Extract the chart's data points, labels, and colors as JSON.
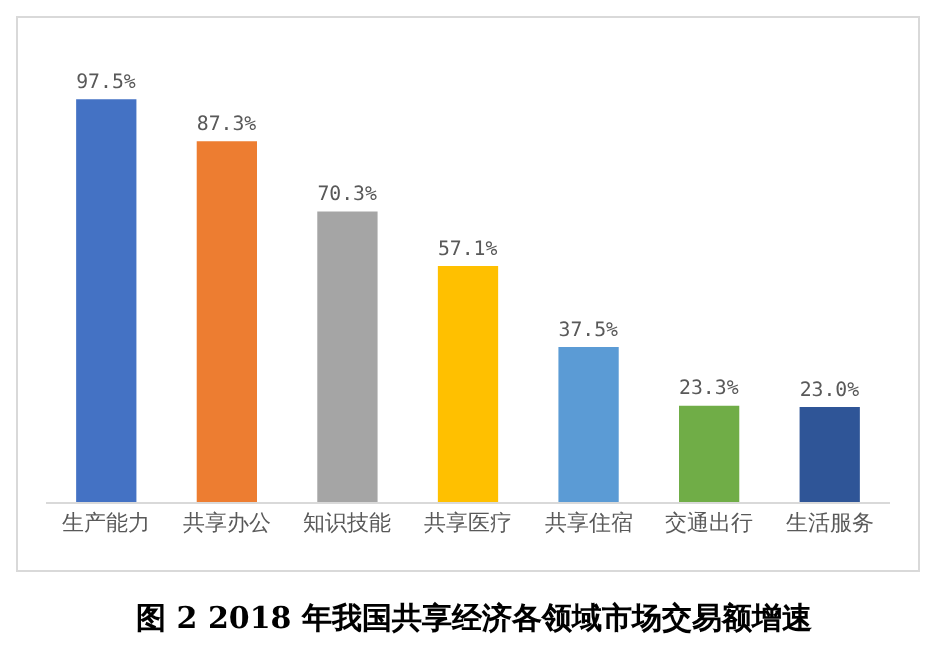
{
  "chart_data": {
    "type": "bar",
    "title": "图 2  2018 年我国共享经济各领域市场交易额增速",
    "categories": [
      "生产能力",
      "共享办公",
      "知识技能",
      "共享医疗",
      "共享住宿",
      "交通出行",
      "生活服务"
    ],
    "values": [
      97.5,
      87.3,
      70.3,
      57.1,
      37.5,
      23.3,
      23.0
    ],
    "value_labels": [
      "97.5%",
      "87.3%",
      "70.3%",
      "57.1%",
      "37.5%",
      "23.3%",
      "23.0%"
    ],
    "colors": [
      "#4472c4",
      "#ed7d31",
      "#a5a5a5",
      "#ffc000",
      "#5b9bd5",
      "#70ad47",
      "#2f5597"
    ],
    "tick_labels": "x",
    "grid": false,
    "legend": false
  }
}
